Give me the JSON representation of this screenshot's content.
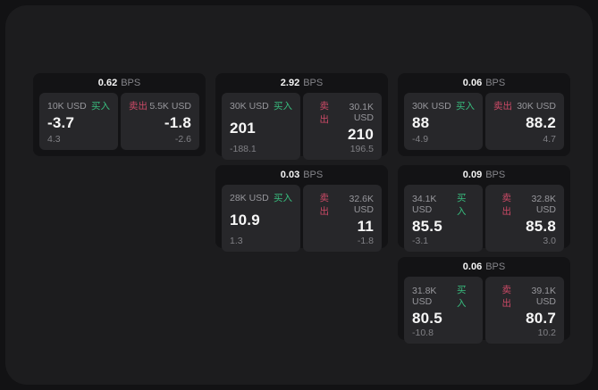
{
  "labels": {
    "bps_unit": "BPS",
    "buy": "买入",
    "sell": "卖出"
  },
  "colors": {
    "panel_bg": "#1c1c1e",
    "card_bg": "#131315",
    "subcard_bg": "#27272a",
    "buy_green": "#38bd7e",
    "sell_red": "#cc4a66",
    "value_white": "#f7f7f7",
    "muted_gray": "#97979c"
  },
  "cards": [
    {
      "bps": "0.62",
      "buy": {
        "amount": "10K USD",
        "value": "-3.7",
        "delta": "4.3"
      },
      "sell": {
        "amount": "5.5K USD",
        "value": "-1.8",
        "delta": "-2.6"
      }
    },
    {
      "bps": "2.92",
      "buy": {
        "amount": "30K USD",
        "value": "201",
        "delta": "-188.1"
      },
      "sell": {
        "amount": "30.1K USD",
        "value": "210",
        "delta": "196.5"
      }
    },
    {
      "bps": "0.06",
      "buy": {
        "amount": "30K USD",
        "value": "88",
        "delta": "-4.9"
      },
      "sell": {
        "amount": "30K USD",
        "value": "88.2",
        "delta": "4.7"
      }
    },
    {
      "bps": "0.03",
      "buy": {
        "amount": "28K USD",
        "value": "10.9",
        "delta": "1.3"
      },
      "sell": {
        "amount": "32.6K USD",
        "value": "11",
        "delta": "-1.8"
      }
    },
    {
      "bps": "0.09",
      "buy": {
        "amount": "34.1K USD",
        "value": "85.5",
        "delta": "-3.1"
      },
      "sell": {
        "amount": "32.8K USD",
        "value": "85.8",
        "delta": "3.0"
      }
    },
    {
      "bps": "0.06",
      "buy": {
        "amount": "31.8K USD",
        "value": "80.5",
        "delta": "-10.8"
      },
      "sell": {
        "amount": "39.1K USD",
        "value": "80.7",
        "delta": "10.2"
      }
    }
  ]
}
